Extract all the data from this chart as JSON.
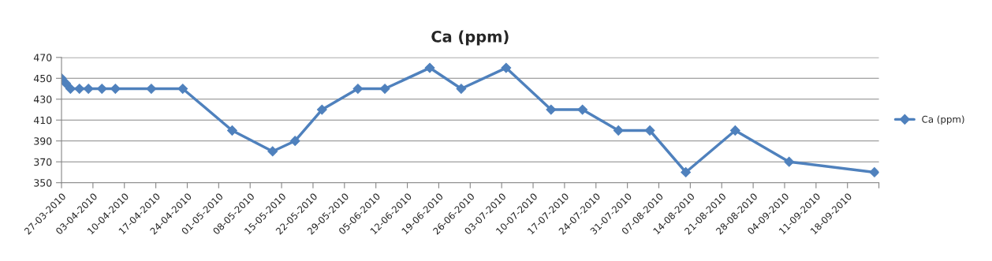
{
  "chart_data": {
    "type": "line",
    "title": "Ca (ppm)",
    "x": [
      "2010-03-27",
      "2010-03-28",
      "2010-03-29",
      "2010-03-31",
      "2010-04-02",
      "2010-04-05",
      "2010-04-08",
      "2010-04-16",
      "2010-04-23",
      "2010-05-04",
      "2010-05-13",
      "2010-05-18",
      "2010-05-24",
      "2010-06-01",
      "2010-06-07",
      "2010-06-17",
      "2010-06-24",
      "2010-07-04",
      "2010-07-14",
      "2010-07-21",
      "2010-07-29",
      "2010-08-05",
      "2010-08-13",
      "2010-08-24",
      "2010-09-05",
      "2010-09-24"
    ],
    "series": [
      {
        "name": "Ca (ppm)",
        "color": "#4f81bd",
        "values": [
          450,
          445,
          440,
          440,
          440,
          440,
          440,
          440,
          440,
          400,
          380,
          390,
          420,
          440,
          440,
          460,
          440,
          460,
          420,
          420,
          400,
          400,
          360,
          400,
          370,
          360
        ]
      }
    ],
    "xlim": [
      "2010-03-27",
      "2010-09-25"
    ],
    "xticks": [
      {
        "value": "2010-03-27",
        "label": "27-03-2010"
      },
      {
        "value": "2010-04-03",
        "label": "03-04-2010"
      },
      {
        "value": "2010-04-10",
        "label": "10-04-2010"
      },
      {
        "value": "2010-04-17",
        "label": "17-04-2010"
      },
      {
        "value": "2010-04-24",
        "label": "24-04-2010"
      },
      {
        "value": "2010-05-01",
        "label": "01-05-2010"
      },
      {
        "value": "2010-05-08",
        "label": "08-05-2010"
      },
      {
        "value": "2010-05-15",
        "label": "15-05-2010"
      },
      {
        "value": "2010-05-22",
        "label": "22-05-2010"
      },
      {
        "value": "2010-05-29",
        "label": "29-05-2010"
      },
      {
        "value": "2010-06-05",
        "label": "05-06-2010"
      },
      {
        "value": "2010-06-12",
        "label": "12-06-2010"
      },
      {
        "value": "2010-06-19",
        "label": "19-06-2010"
      },
      {
        "value": "2010-06-26",
        "label": "26-06-2010"
      },
      {
        "value": "2010-07-03",
        "label": "03-07-2010"
      },
      {
        "value": "2010-07-10",
        "label": "10-07-2010"
      },
      {
        "value": "2010-07-17",
        "label": "17-07-2010"
      },
      {
        "value": "2010-07-24",
        "label": "24-07-2010"
      },
      {
        "value": "2010-07-31",
        "label": "31-07-2010"
      },
      {
        "value": "2010-08-07",
        "label": "07-08-2010"
      },
      {
        "value": "2010-08-14",
        "label": "14-08-2010"
      },
      {
        "value": "2010-08-21",
        "label": "21-08-2010"
      },
      {
        "value": "2010-08-28",
        "label": "28-08-2010"
      },
      {
        "value": "2010-09-04",
        "label": "04-09-2010"
      },
      {
        "value": "2010-09-11",
        "label": "11-09-2010"
      },
      {
        "value": "2010-09-18",
        "label": "18-09-2010"
      },
      {
        "value": "2010-09-25",
        "label": null
      }
    ],
    "ylim": [
      350,
      470
    ],
    "yticks": [
      350,
      370,
      390,
      410,
      430,
      450,
      470
    ],
    "grid": "y",
    "legend": "right",
    "marker": "diamond",
    "line_style": "solid"
  }
}
